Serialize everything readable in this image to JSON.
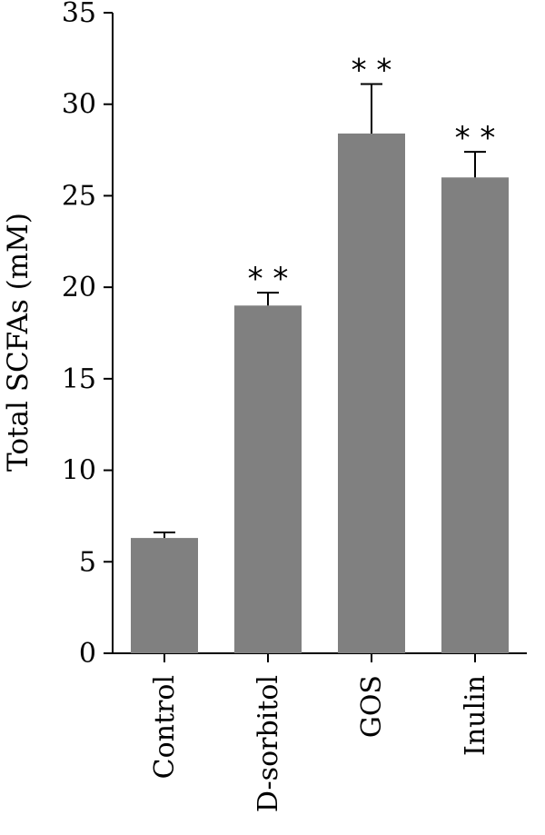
{
  "chart_data": {
    "type": "bar",
    "categories": [
      "Control",
      "D-sorbitol",
      "GOS",
      "Inulin"
    ],
    "values": [
      6.3,
      19.0,
      28.4,
      26.0
    ],
    "error_upper": [
      0.3,
      0.7,
      2.7,
      1.4
    ],
    "significance": [
      "",
      "* *",
      "* *",
      "* *"
    ],
    "ylabel": "Total SCFAs (mM)",
    "xlabel": "",
    "ylim": [
      0,
      35
    ],
    "yticks": [
      0,
      5,
      10,
      15,
      20,
      25,
      30,
      35
    ],
    "grid": false,
    "bar_color": "#808080",
    "axis_color": "#000000"
  }
}
